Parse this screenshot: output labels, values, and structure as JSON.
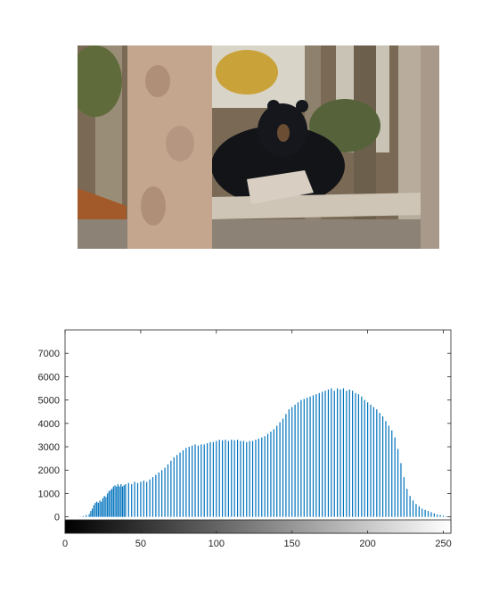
{
  "image": {
    "subject": "black-bear-photo",
    "colors": {
      "forest": "#7a6a55",
      "sky": "#d9d4c8",
      "bear": "#121418",
      "trunk": "#c4a58e",
      "log": "#cfc5b6",
      "foliage": "#5f6b3a",
      "autumn": "#c9a23a"
    }
  },
  "chart_data": {
    "type": "bar",
    "xlim": [
      0,
      255
    ],
    "ylim": [
      -700,
      8000
    ],
    "xticks": [
      0,
      50,
      100,
      150,
      200,
      250
    ],
    "yticks": [
      0,
      1000,
      2000,
      3000,
      4000,
      5000,
      6000,
      7000
    ],
    "bar_color": "#0072bd",
    "colorbar": "grayscale 0-255",
    "x": [
      8,
      10,
      12,
      14,
      16,
      17,
      18,
      19,
      20,
      21,
      22,
      23,
      24,
      25,
      26,
      27,
      28,
      29,
      30,
      31,
      32,
      33,
      34,
      35,
      36,
      37,
      38,
      39,
      40,
      42,
      44,
      46,
      48,
      50,
      52,
      54,
      56,
      58,
      60,
      62,
      64,
      66,
      68,
      70,
      72,
      74,
      76,
      78,
      80,
      82,
      84,
      86,
      88,
      90,
      92,
      94,
      96,
      98,
      100,
      102,
      104,
      106,
      108,
      110,
      112,
      114,
      116,
      118,
      120,
      122,
      124,
      126,
      128,
      130,
      132,
      134,
      136,
      138,
      140,
      142,
      144,
      146,
      148,
      150,
      152,
      154,
      156,
      158,
      160,
      162,
      164,
      166,
      168,
      170,
      172,
      174,
      176,
      178,
      180,
      182,
      184,
      186,
      188,
      190,
      192,
      194,
      196,
      198,
      200,
      202,
      204,
      206,
      208,
      210,
      212,
      214,
      216,
      218,
      220,
      222,
      224,
      226,
      228,
      230,
      232,
      234,
      236,
      238,
      240,
      242,
      244,
      246,
      248,
      250,
      252
    ],
    "values": [
      0,
      10,
      30,
      80,
      120,
      250,
      350,
      500,
      600,
      650,
      600,
      700,
      650,
      800,
      900,
      850,
      1000,
      1100,
      1150,
      1200,
      1300,
      1350,
      1300,
      1400,
      1300,
      1400,
      1300,
      1350,
      1400,
      1450,
      1400,
      1500,
      1450,
      1500,
      1550,
      1500,
      1600,
      1700,
      1800,
      1900,
      2000,
      2100,
      2250,
      2400,
      2550,
      2650,
      2750,
      2850,
      2950,
      3000,
      3050,
      3100,
      3050,
      3100,
      3100,
      3150,
      3200,
      3200,
      3250,
      3300,
      3280,
      3300,
      3250,
      3300,
      3280,
      3300,
      3250,
      3250,
      3200,
      3250,
      3250,
      3300,
      3350,
      3400,
      3450,
      3550,
      3650,
      3750,
      3900,
      4050,
      4200,
      4400,
      4600,
      4700,
      4800,
      4900,
      5000,
      5050,
      5100,
      5150,
      5200,
      5250,
      5300,
      5350,
      5400,
      5450,
      5500,
      5400,
      5500,
      5450,
      5500,
      5400,
      5450,
      5400,
      5300,
      5250,
      5150,
      5000,
      4900,
      4800,
      4700,
      4600,
      4450,
      4300,
      4100,
      3900,
      3700,
      3400,
      2900,
      2300,
      1700,
      1200,
      900,
      700,
      550,
      450,
      350,
      300,
      250,
      200,
      150,
      100,
      80,
      50,
      20
    ]
  }
}
